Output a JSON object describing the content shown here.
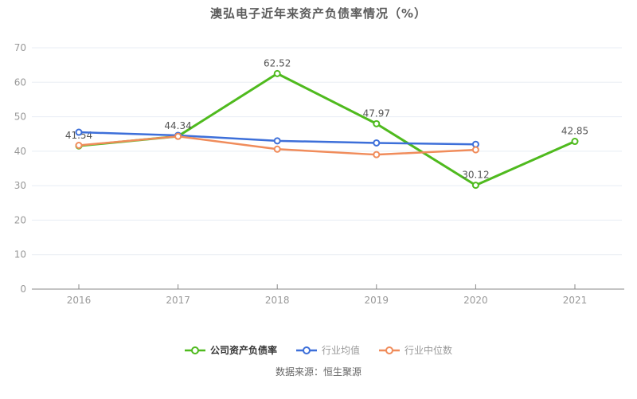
{
  "chart_data": {
    "type": "line",
    "title": "澳弘电子近年来资产负债率情况（%）",
    "categories": [
      "2016",
      "2017",
      "2018",
      "2019",
      "2020",
      "2021"
    ],
    "series": [
      {
        "name": "公司资产负债率",
        "color": "#4fba1e",
        "values": [
          41.54,
          44.34,
          62.52,
          47.97,
          30.12,
          42.85
        ],
        "labels": [
          "41.54",
          "44.34",
          "62.52",
          "47.97",
          "30.12",
          "42.85"
        ],
        "show_labels": true
      },
      {
        "name": "行业均值",
        "color": "#3d6fd9",
        "values": [
          45.5,
          44.6,
          43.0,
          42.4,
          42.0,
          null
        ],
        "show_labels": false
      },
      {
        "name": "行业中位数",
        "color": "#f08c5b",
        "values": [
          41.7,
          44.3,
          40.6,
          39.0,
          40.4,
          null
        ],
        "show_labels": false
      }
    ],
    "ylim": [
      0,
      70
    ],
    "ytick_step": 10,
    "grid": true,
    "legend_position": "bottom",
    "axis_text_color": "#999999",
    "grid_color": "#e8edf4",
    "axis_line_color": "#888888",
    "label_color": "#555555",
    "source": "数据来源：恒生聚源"
  }
}
